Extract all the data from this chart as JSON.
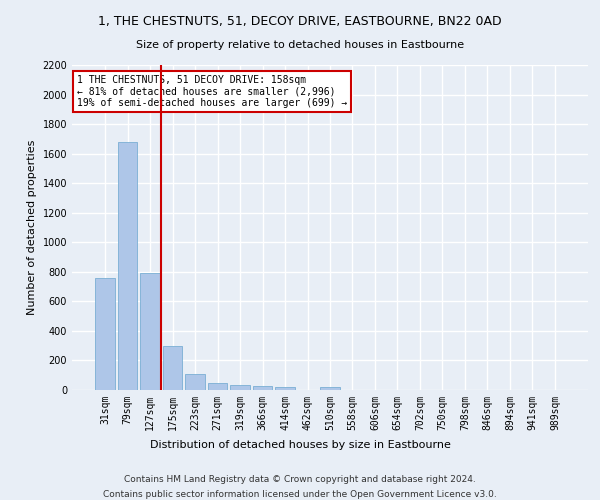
{
  "title": "1, THE CHESTNUTS, 51, DECOY DRIVE, EASTBOURNE, BN22 0AD",
  "subtitle": "Size of property relative to detached houses in Eastbourne",
  "xlabel": "Distribution of detached houses by size in Eastbourne",
  "ylabel": "Number of detached properties",
  "categories": [
    "31sqm",
    "79sqm",
    "127sqm",
    "175sqm",
    "223sqm",
    "271sqm",
    "319sqm",
    "366sqm",
    "414sqm",
    "462sqm",
    "510sqm",
    "558sqm",
    "606sqm",
    "654sqm",
    "702sqm",
    "750sqm",
    "798sqm",
    "846sqm",
    "894sqm",
    "941sqm",
    "989sqm"
  ],
  "values": [
    760,
    1680,
    790,
    300,
    110,
    45,
    32,
    27,
    22,
    0,
    20,
    0,
    0,
    0,
    0,
    0,
    0,
    0,
    0,
    0,
    0
  ],
  "bar_color": "#aec6e8",
  "bar_edge_color": "#7aafd4",
  "vline_color": "#cc0000",
  "annotation_text": "1 THE CHESTNUTS, 51 DECOY DRIVE: 158sqm\n← 81% of detached houses are smaller (2,996)\n19% of semi-detached houses are larger (699) →",
  "annotation_box_color": "#ffffff",
  "annotation_box_edge": "#cc0000",
  "footer1": "Contains HM Land Registry data © Crown copyright and database right 2024.",
  "footer2": "Contains public sector information licensed under the Open Government Licence v3.0.",
  "ylim": [
    0,
    2200
  ],
  "yticks": [
    0,
    200,
    400,
    600,
    800,
    1000,
    1200,
    1400,
    1600,
    1800,
    2000,
    2200
  ],
  "bg_color": "#e8eef6",
  "plot_bg_color": "#e8eef6",
  "grid_color": "#ffffff",
  "title_fontsize": 9,
  "subtitle_fontsize": 8,
  "ylabel_fontsize": 8,
  "xlabel_fontsize": 8,
  "tick_fontsize": 7,
  "annotation_fontsize": 7
}
